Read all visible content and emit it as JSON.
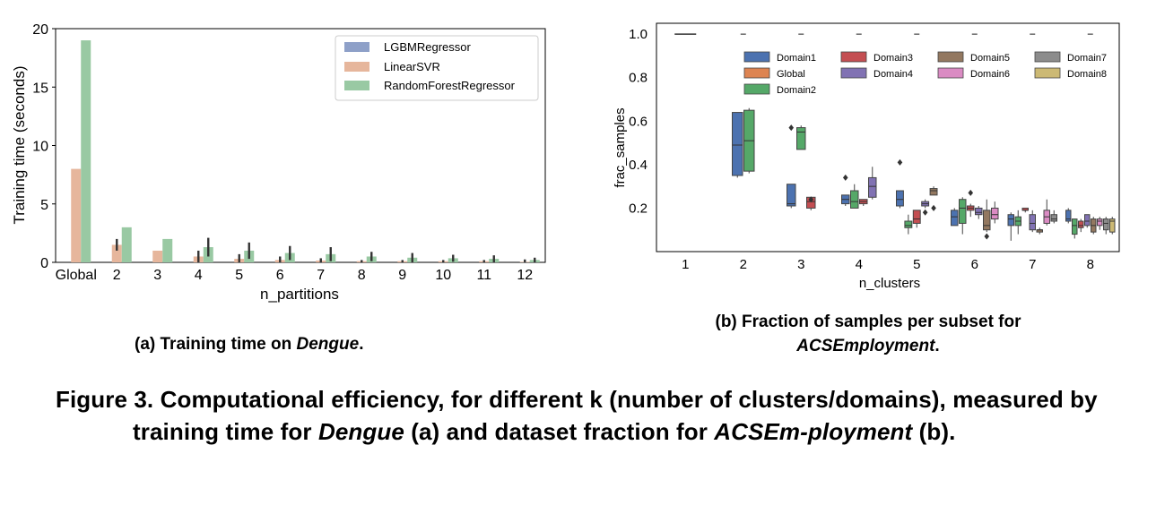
{
  "figure": {
    "label": "Figure 3.",
    "text_1": "Computational efficiency, for different k (number of clusters/domains), measured by training time for",
    "em_1": "Dengue",
    "text_2": "(a) and dataset fraction for",
    "em_2": "ACSEm-ployment",
    "text_3": "(b)."
  },
  "caption_a": {
    "prefix": "(a) Training time on",
    "em": "Dengue",
    "suffix": "."
  },
  "caption_b": {
    "line1": "(b) Fraction of samples per subset for",
    "em": "ACSEmployment",
    "suffix": "."
  },
  "colors": {
    "LGBMRegressor": "#8ea0c8",
    "LinearSVR": "#e6b69c",
    "RandomForestRegressor": "#99c9a3",
    "Domain1": "#4c72b0",
    "Global": "#dd8452",
    "Domain2": "#55a868",
    "Domain3": "#c44e52",
    "Domain4": "#8172b3",
    "Domain5": "#937860",
    "Domain6": "#da8bc3",
    "Domain7": "#8c8c8c",
    "Domain8": "#ccb974"
  },
  "chart_data": [
    {
      "type": "bar",
      "xlabel": "n_partitions",
      "ylabel": "Training time (seconds)",
      "ylim": [
        0,
        20
      ],
      "yticks": [
        "0",
        "5",
        "10",
        "15",
        "20"
      ],
      "categories": [
        "Global",
        "2",
        "3",
        "4",
        "5",
        "6",
        "7",
        "8",
        "9",
        "10",
        "11",
        "12"
      ],
      "legend_position": "top-right",
      "series": [
        {
          "name": "LGBMRegressor",
          "values": [
            0,
            0,
            0,
            0,
            0,
            0,
            0,
            0,
            0,
            0,
            0,
            0
          ],
          "err": [
            0,
            0,
            0,
            0,
            0,
            0,
            0,
            0,
            0,
            0,
            0,
            0
          ]
        },
        {
          "name": "LinearSVR",
          "values": [
            8.0,
            1.5,
            1.0,
            0.5,
            0.3,
            0.2,
            0.15,
            0.1,
            0.1,
            0.1,
            0.1,
            0.05
          ],
          "err": [
            0,
            0.5,
            0,
            0.5,
            0.4,
            0.3,
            0.2,
            0.1,
            0.1,
            0.1,
            0.1,
            0.2
          ]
        },
        {
          "name": "RandomForestRegressor",
          "values": [
            19.0,
            3.0,
            2.0,
            1.3,
            1.0,
            0.8,
            0.7,
            0.5,
            0.4,
            0.35,
            0.3,
            0.2
          ],
          "err": [
            0,
            0,
            0,
            0.8,
            0.7,
            0.6,
            0.6,
            0.4,
            0.4,
            0.3,
            0.3,
            0.2
          ]
        }
      ]
    },
    {
      "type": "box",
      "xlabel": "n_clusters",
      "ylabel": "frac_samples",
      "ylim": [
        0,
        1.05
      ],
      "yticks": [
        "0.2",
        "0.4",
        "0.6",
        "0.8",
        "1.0"
      ],
      "categories": [
        "1",
        "2",
        "3",
        "4",
        "5",
        "6",
        "7",
        "8"
      ],
      "legend_position": "top-right",
      "legend_order": [
        "Domain1",
        "Domain3",
        "Domain5",
        "Domain7",
        "Global",
        "Domain4",
        "Domain6",
        "Domain8",
        "Domain2"
      ],
      "groups": [
        {
          "x": "1",
          "boxes": [
            {
              "name": "Global",
              "min": 1.0,
              "q1": 1.0,
              "med": 1.0,
              "q3": 1.0,
              "max": 1.0
            }
          ]
        },
        {
          "x": "2",
          "boxes": [
            {
              "name": "Domain1",
              "min": 0.34,
              "q1": 0.35,
              "med": 0.49,
              "q3": 0.64,
              "max": 0.64
            },
            {
              "name": "Domain2",
              "min": 0.36,
              "q1": 0.37,
              "med": 0.51,
              "q3": 0.65,
              "max": 0.66
            }
          ]
        },
        {
          "x": "3",
          "boxes": [
            {
              "name": "Domain1",
              "min": 0.2,
              "q1": 0.21,
              "med": 0.22,
              "q3": 0.31,
              "max": 0.31,
              "outliers": [
                0.57
              ]
            },
            {
              "name": "Domain2",
              "min": 0.47,
              "q1": 0.47,
              "med": 0.55,
              "q3": 0.57,
              "max": 0.58
            },
            {
              "name": "Domain3",
              "min": 0.19,
              "q1": 0.2,
              "med": 0.23,
              "q3": 0.25,
              "max": 0.25,
              "outliers": [
                0.24
              ]
            }
          ]
        },
        {
          "x": "4",
          "boxes": [
            {
              "name": "Domain1",
              "min": 0.21,
              "q1": 0.22,
              "med": 0.24,
              "q3": 0.26,
              "max": 0.26,
              "outliers": [
                0.34
              ]
            },
            {
              "name": "Domain2",
              "min": 0.2,
              "q1": 0.2,
              "med": 0.23,
              "q3": 0.28,
              "max": 0.31
            },
            {
              "name": "Domain3",
              "min": 0.21,
              "q1": 0.22,
              "med": 0.23,
              "q3": 0.24,
              "max": 0.24
            },
            {
              "name": "Domain4",
              "min": 0.24,
              "q1": 0.25,
              "med": 0.3,
              "q3": 0.34,
              "max": 0.39
            }
          ]
        },
        {
          "x": "5",
          "boxes": [
            {
              "name": "Domain1",
              "min": 0.2,
              "q1": 0.21,
              "med": 0.24,
              "q3": 0.28,
              "max": 0.28,
              "outliers": [
                0.41
              ]
            },
            {
              "name": "Domain2",
              "min": 0.08,
              "q1": 0.11,
              "med": 0.12,
              "q3": 0.14,
              "max": 0.17
            },
            {
              "name": "Domain3",
              "min": 0.11,
              "q1": 0.13,
              "med": 0.15,
              "q3": 0.19,
              "max": 0.19
            },
            {
              "name": "Domain4",
              "min": 0.2,
              "q1": 0.21,
              "med": 0.22,
              "q3": 0.23,
              "max": 0.24,
              "outliers": [
                0.18
              ]
            },
            {
              "name": "Domain5",
              "min": 0.26,
              "q1": 0.26,
              "med": 0.28,
              "q3": 0.29,
              "max": 0.3,
              "outliers": [
                0.2
              ]
            }
          ]
        },
        {
          "x": "6",
          "boxes": [
            {
              "name": "Domain1",
              "min": 0.12,
              "q1": 0.12,
              "med": 0.16,
              "q3": 0.19,
              "max": 0.2
            },
            {
              "name": "Domain2",
              "min": 0.08,
              "q1": 0.13,
              "med": 0.2,
              "q3": 0.24,
              "max": 0.25
            },
            {
              "name": "Domain3",
              "min": 0.16,
              "q1": 0.19,
              "med": 0.2,
              "q3": 0.21,
              "max": 0.22,
              "outliers": [
                0.27
              ]
            },
            {
              "name": "Domain4",
              "min": 0.15,
              "q1": 0.17,
              "med": 0.18,
              "q3": 0.2,
              "max": 0.21
            },
            {
              "name": "Domain5",
              "min": 0.09,
              "q1": 0.1,
              "med": 0.12,
              "q3": 0.19,
              "max": 0.24,
              "outliers": [
                0.07
              ]
            },
            {
              "name": "Domain6",
              "min": 0.13,
              "q1": 0.15,
              "med": 0.17,
              "q3": 0.2,
              "max": 0.23
            }
          ]
        },
        {
          "x": "7",
          "boxes": [
            {
              "name": "Domain1",
              "min": 0.05,
              "q1": 0.12,
              "med": 0.15,
              "q3": 0.17,
              "max": 0.18
            },
            {
              "name": "Domain2",
              "min": 0.08,
              "q1": 0.12,
              "med": 0.14,
              "q3": 0.16,
              "max": 0.19
            },
            {
              "name": "Domain3",
              "min": 0.18,
              "q1": 0.19,
              "med": 0.19,
              "q3": 0.2,
              "max": 0.2
            },
            {
              "name": "Domain4",
              "min": 0.09,
              "q1": 0.1,
              "med": 0.13,
              "q3": 0.17,
              "max": 0.19
            },
            {
              "name": "Domain5",
              "min": 0.08,
              "q1": 0.09,
              "med": 0.1,
              "q3": 0.1,
              "max": 0.11
            },
            {
              "name": "Domain6",
              "min": 0.12,
              "q1": 0.13,
              "med": 0.16,
              "q3": 0.19,
              "max": 0.24
            },
            {
              "name": "Domain7",
              "min": 0.13,
              "q1": 0.14,
              "med": 0.15,
              "q3": 0.17,
              "max": 0.19
            }
          ]
        },
        {
          "x": "8",
          "boxes": [
            {
              "name": "Domain1",
              "min": 0.13,
              "q1": 0.14,
              "med": 0.15,
              "q3": 0.19,
              "max": 0.2
            },
            {
              "name": "Domain2",
              "min": 0.06,
              "q1": 0.08,
              "med": 0.12,
              "q3": 0.15,
              "max": 0.15
            },
            {
              "name": "Domain3",
              "min": 0.09,
              "q1": 0.11,
              "med": 0.12,
              "q3": 0.14,
              "max": 0.15
            },
            {
              "name": "Domain4",
              "min": 0.11,
              "q1": 0.12,
              "med": 0.14,
              "q3": 0.17,
              "max": 0.17
            },
            {
              "name": "Domain5",
              "min": 0.08,
              "q1": 0.09,
              "med": 0.12,
              "q3": 0.15,
              "max": 0.16
            },
            {
              "name": "Domain6",
              "min": 0.1,
              "q1": 0.12,
              "med": 0.14,
              "q3": 0.15,
              "max": 0.16
            },
            {
              "name": "Domain7",
              "min": 0.08,
              "q1": 0.1,
              "med": 0.13,
              "q3": 0.15,
              "max": 0.16
            },
            {
              "name": "Domain8",
              "min": 0.08,
              "q1": 0.09,
              "med": 0.14,
              "q3": 0.15,
              "max": 0.16
            }
          ]
        }
      ],
      "top_markers": [
        "2",
        "3",
        "4",
        "5",
        "6",
        "7",
        "8"
      ]
    }
  ]
}
